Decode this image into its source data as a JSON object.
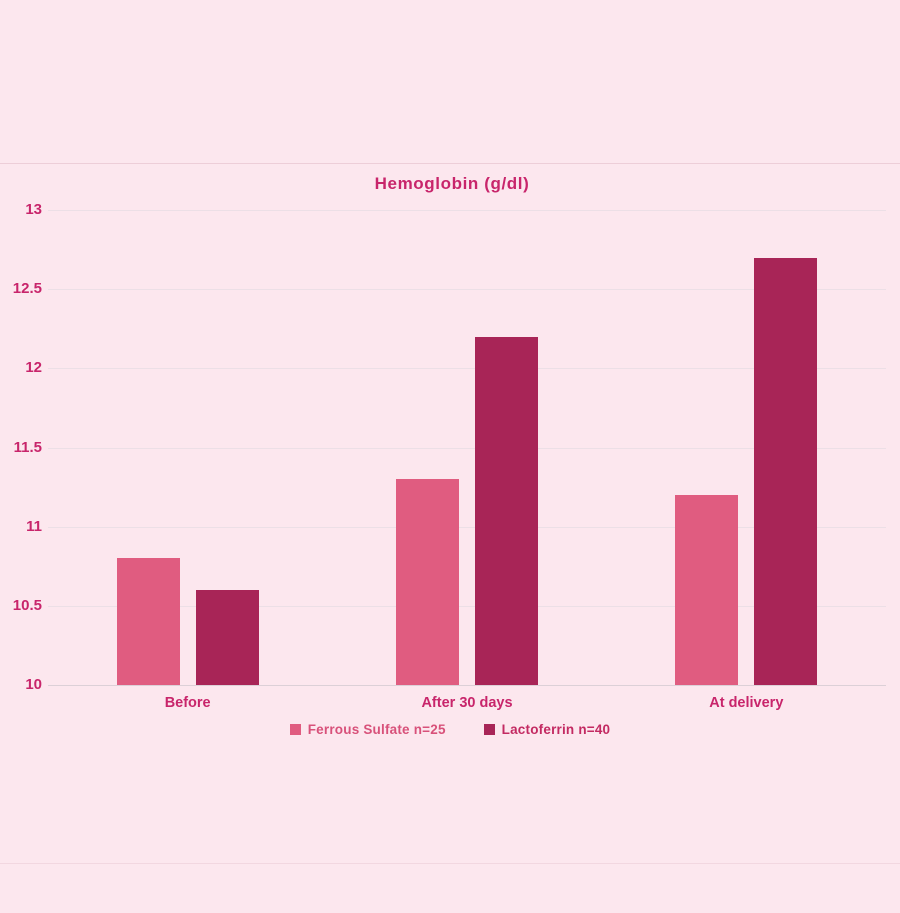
{
  "page": {
    "background_color": "#fce7ee",
    "accent_text_color": "#c8256b"
  },
  "chart_data": {
    "type": "bar",
    "title": "Hemoglobin (g/dl)",
    "categories": [
      "Before",
      "After 30 days",
      "At delivery"
    ],
    "series": [
      {
        "name": "Ferrous Sulfate n=25",
        "color": "#e05c80",
        "label_color": "#d8517a",
        "values": [
          10.8,
          11.3,
          11.2
        ]
      },
      {
        "name": "Lactoferrin n=40",
        "color": "#a82557",
        "label_color": "#c32a62",
        "values": [
          10.6,
          12.2,
          12.7
        ]
      }
    ],
    "ylim": [
      10,
      13
    ],
    "ytick_step": 0.5,
    "ytick_labels": [
      "10",
      "10.5",
      "11",
      "11.5",
      "12",
      "12.5",
      "13"
    ],
    "grid": true,
    "legend_position": "bottom",
    "gridline_color": "#ecdfe6",
    "axisline_color": "#dcd0d7"
  }
}
